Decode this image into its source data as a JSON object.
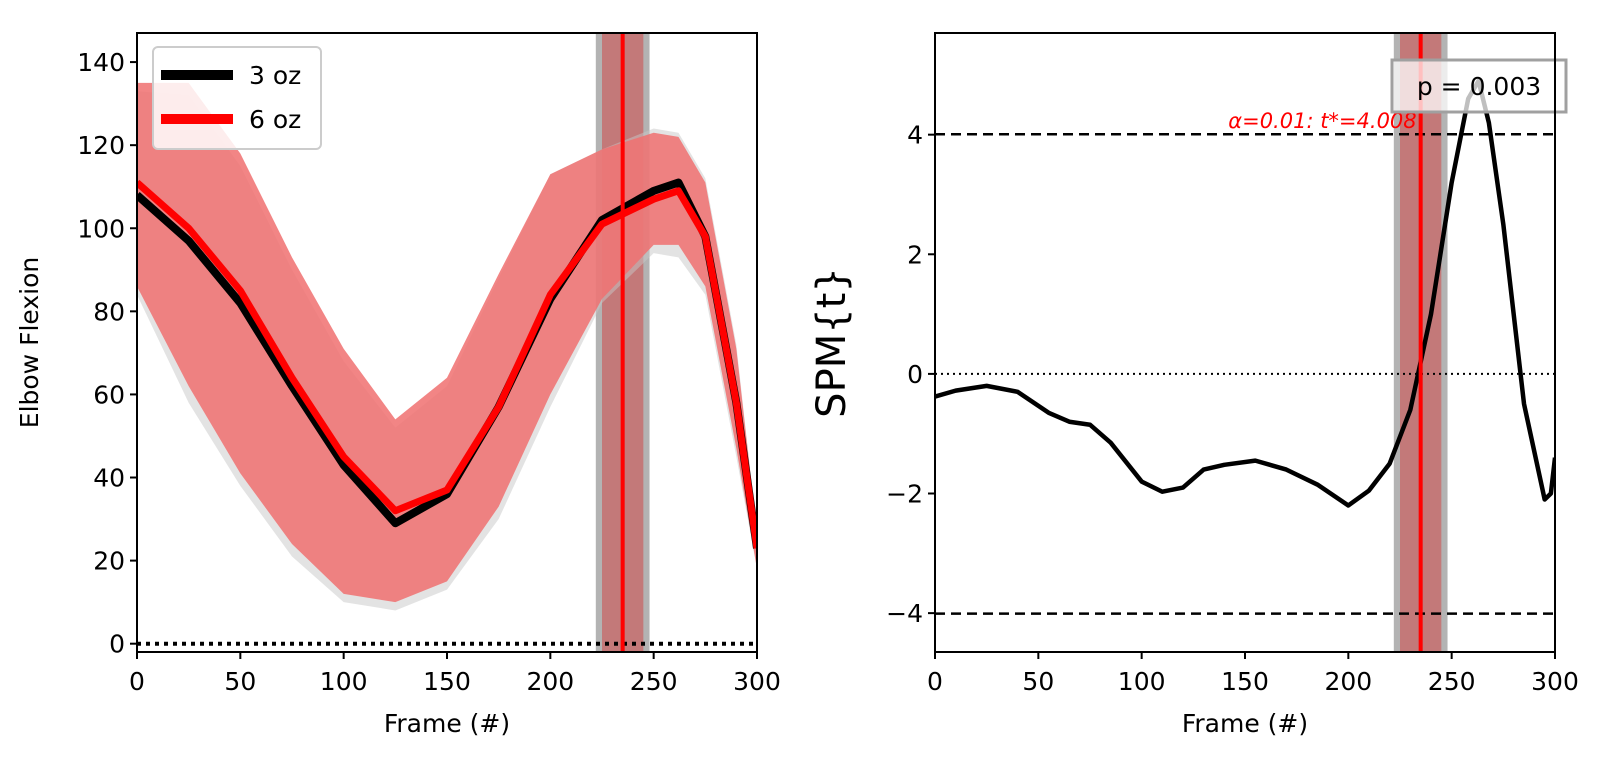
{
  "chart_data": [
    {
      "type": "line",
      "title": "",
      "xlabel": "Frame (#)",
      "ylabel": "Elbow Flexion",
      "xlim": [
        0,
        300
      ],
      "ylim": [
        -2,
        147
      ],
      "xticks": [
        "0",
        "50",
        "100",
        "150",
        "200",
        "250",
        "300"
      ],
      "yticks": [
        "0",
        "20",
        "40",
        "60",
        "80",
        "100",
        "120",
        "140"
      ],
      "legend": {
        "placement": "top-left",
        "entries": [
          "3 oz",
          "6 oz"
        ]
      },
      "reference_line": {
        "y": 0,
        "style": "dotted"
      },
      "highlight": {
        "band": [
          222,
          248
        ],
        "inner_band": [
          225,
          245
        ],
        "line_x": 235
      },
      "x": [
        0,
        25,
        50,
        75,
        100,
        125,
        150,
        175,
        200,
        225,
        250,
        262,
        275,
        290,
        300
      ],
      "series": [
        {
          "name": "3 oz",
          "color": "#000000",
          "values": [
            108,
            97,
            82,
            62,
            43,
            29,
            36,
            57,
            83,
            102,
            109,
            111,
            98,
            58,
            23
          ],
          "band_lower": [
            84,
            58,
            38,
            21,
            10,
            8,
            13,
            30,
            57,
            82,
            94,
            93,
            84,
            45,
            18
          ],
          "band_upper": [
            133,
            132,
            115,
            90,
            68,
            52,
            62,
            88,
            113,
            119,
            124,
            123,
            112,
            72,
            27
          ]
        },
        {
          "name": "6 oz",
          "color": "#ff0000",
          "values": [
            111,
            100,
            85,
            64,
            45,
            32,
            37,
            57,
            84,
            101,
            107,
            109,
            98,
            58,
            23
          ],
          "band_lower": [
            86,
            62,
            41,
            24,
            12,
            10,
            15,
            33,
            60,
            83,
            96,
            96,
            86,
            47,
            18
          ],
          "band_upper": [
            135,
            135,
            118,
            93,
            71,
            54,
            64,
            89,
            113,
            119,
            123,
            122,
            111,
            71,
            27
          ]
        }
      ]
    },
    {
      "type": "line",
      "title": "",
      "xlabel": "Frame (#)",
      "ylabel": "SPM{t}",
      "xlim": [
        0,
        300
      ],
      "ylim": [
        -4.65,
        5.7
      ],
      "xticks": [
        "0",
        "50",
        "100",
        "150",
        "200",
        "250",
        "300"
      ],
      "yticks": [
        "−4",
        "−2",
        "0",
        "2",
        "4"
      ],
      "threshold": {
        "value": 4.008,
        "label": "α=0.01:  t*=4.008",
        "color": "#ff0000"
      },
      "p_value_label": "p = 0.003",
      "reference_line": {
        "y": 0,
        "style": "dotted"
      },
      "highlight": {
        "band": [
          222,
          248
        ],
        "inner_band": [
          225,
          245
        ],
        "line_x": 235
      },
      "series": [
        {
          "name": "",
          "color": "#000000",
          "x": [
            0,
            10,
            25,
            40,
            55,
            65,
            75,
            85,
            100,
            110,
            120,
            130,
            140,
            155,
            170,
            185,
            200,
            210,
            220,
            230,
            240,
            250,
            258,
            263,
            268,
            275,
            285,
            295,
            298,
            300
          ],
          "values": [
            -0.38,
            -0.28,
            -0.2,
            -0.3,
            -0.65,
            -0.8,
            -0.85,
            -1.15,
            -1.8,
            -1.97,
            -1.9,
            -1.6,
            -1.52,
            -1.45,
            -1.6,
            -1.85,
            -2.2,
            -1.95,
            -1.5,
            -0.6,
            1.0,
            3.2,
            4.6,
            4.9,
            4.2,
            2.5,
            -0.5,
            -2.1,
            -2.0,
            -1.4
          ]
        }
      ]
    }
  ]
}
